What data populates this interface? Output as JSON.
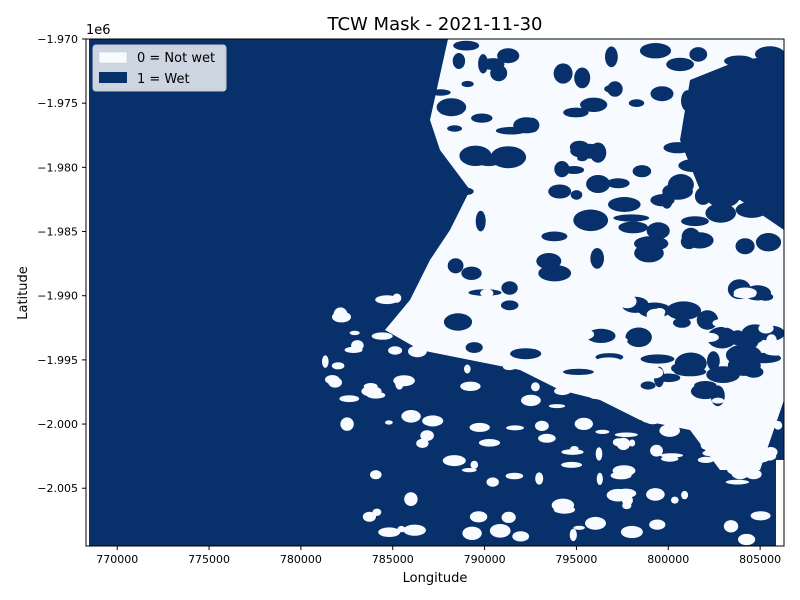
{
  "chart_data": {
    "type": "heatmap",
    "title": "TCW Mask - 2021-11-30",
    "xlabel": "Longitude",
    "ylabel": "Latitude",
    "y_offset_label": "1e6",
    "xlim": [
      768300,
      806300
    ],
    "ylim": [
      -2009500,
      -1970000
    ],
    "x_ticks": [
      770000,
      775000,
      780000,
      785000,
      790000,
      795000,
      800000,
      805000
    ],
    "x_tick_labels": [
      "770000",
      "775000",
      "780000",
      "785000",
      "790000",
      "795000",
      "800000",
      "805000"
    ],
    "y_ticks": [
      -1970000,
      -1975000,
      -1980000,
      -1985000,
      -1990000,
      -1995000,
      -2000000,
      -2005000
    ],
    "y_tick_labels": [
      "−1.970",
      "−1.975",
      "−1.980",
      "−1.985",
      "−1.990",
      "−1.995",
      "−2.000",
      "−2.005"
    ],
    "grid": false,
    "legend_position": "top-left",
    "legend": [
      {
        "label": "0 = Not wet",
        "value": 0,
        "color": "#f7fbff"
      },
      {
        "label": "1 = Wet",
        "value": 1,
        "color": "#08306b"
      }
    ],
    "colormap": {
      "0": "#f7fbff",
      "1": "#08306b"
    }
  }
}
